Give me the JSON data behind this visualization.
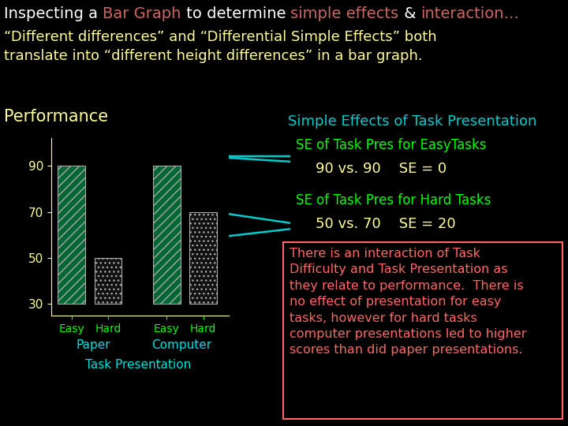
{
  "bg_color": "#000000",
  "title_line1_parts": [
    {
      "text": "Inspecting a ",
      "color": "#ffffff"
    },
    {
      "text": "Bar Graph",
      "color": "#cc6666"
    },
    {
      "text": " to determine ",
      "color": "#ffffff"
    },
    {
      "text": "simple effects",
      "color": "#cc6666"
    },
    {
      "text": " & ",
      "color": "#ffffff"
    },
    {
      "text": "interaction…",
      "color": "#cc6666"
    }
  ],
  "title_line2": "“Different differences” and “Differential Simple Effects” both\ntranslate into “different height differences” in a bar graph.",
  "title_line2_color": "#ffff99",
  "perf_label": "Performance",
  "perf_label_color": "#ffff99",
  "yticks": [
    30,
    50,
    70,
    90
  ],
  "ytick_color": "#ffff99",
  "axis_color": "#ffff99",
  "bar_values": [
    90,
    50,
    90,
    70
  ],
  "bar_hatch_easy": "///",
  "bar_hatch_hard": "...",
  "bar_facecolor": "#006633",
  "bar_edgecolor": "#aaaaaa",
  "bar_hard_facecolor": "#111111",
  "xlabel_paper": "Paper",
  "xlabel_computer": "Computer",
  "xlabel_color": "#00dddd",
  "tick_label_easy_hard": [
    "Easy",
    "Hard",
    "Easy",
    "Hard"
  ],
  "tick_label_color": "#00ff00",
  "task_pres_label": "Task Presentation",
  "task_pres_label_color": "#00dddd",
  "simple_effects_title": "Simple Effects of Task Presentation",
  "simple_effects_title_color": "#00cccc",
  "se_easy_label": "SE of Task Pres for EasyTasks",
  "se_easy_color": "#00ff00",
  "se_easy_vals": "90 vs. 90    SE = 0",
  "se_easy_vals_color": "#ffff99",
  "se_hard_label": "SE of Task Pres for Hard Tasks",
  "se_hard_color": "#00ff00",
  "se_hard_vals": "50 vs. 70    SE = 20",
  "se_hard_vals_color": "#ffff99",
  "box_text": "There is an interaction of Task\nDifficulty and Task Presentation as\nthey relate to performance.  There is\nno effect of presentation for easy\ntasks, however for hard tasks\ncomputer presentations led to higher\nscores than did paper presentations.",
  "box_text_color": "#ff6666",
  "box_border_color": "#ff6666",
  "arrow_color": "#00cccc",
  "font_size_title": 14,
  "font_size_body": 13,
  "font_size_annot": 13
}
